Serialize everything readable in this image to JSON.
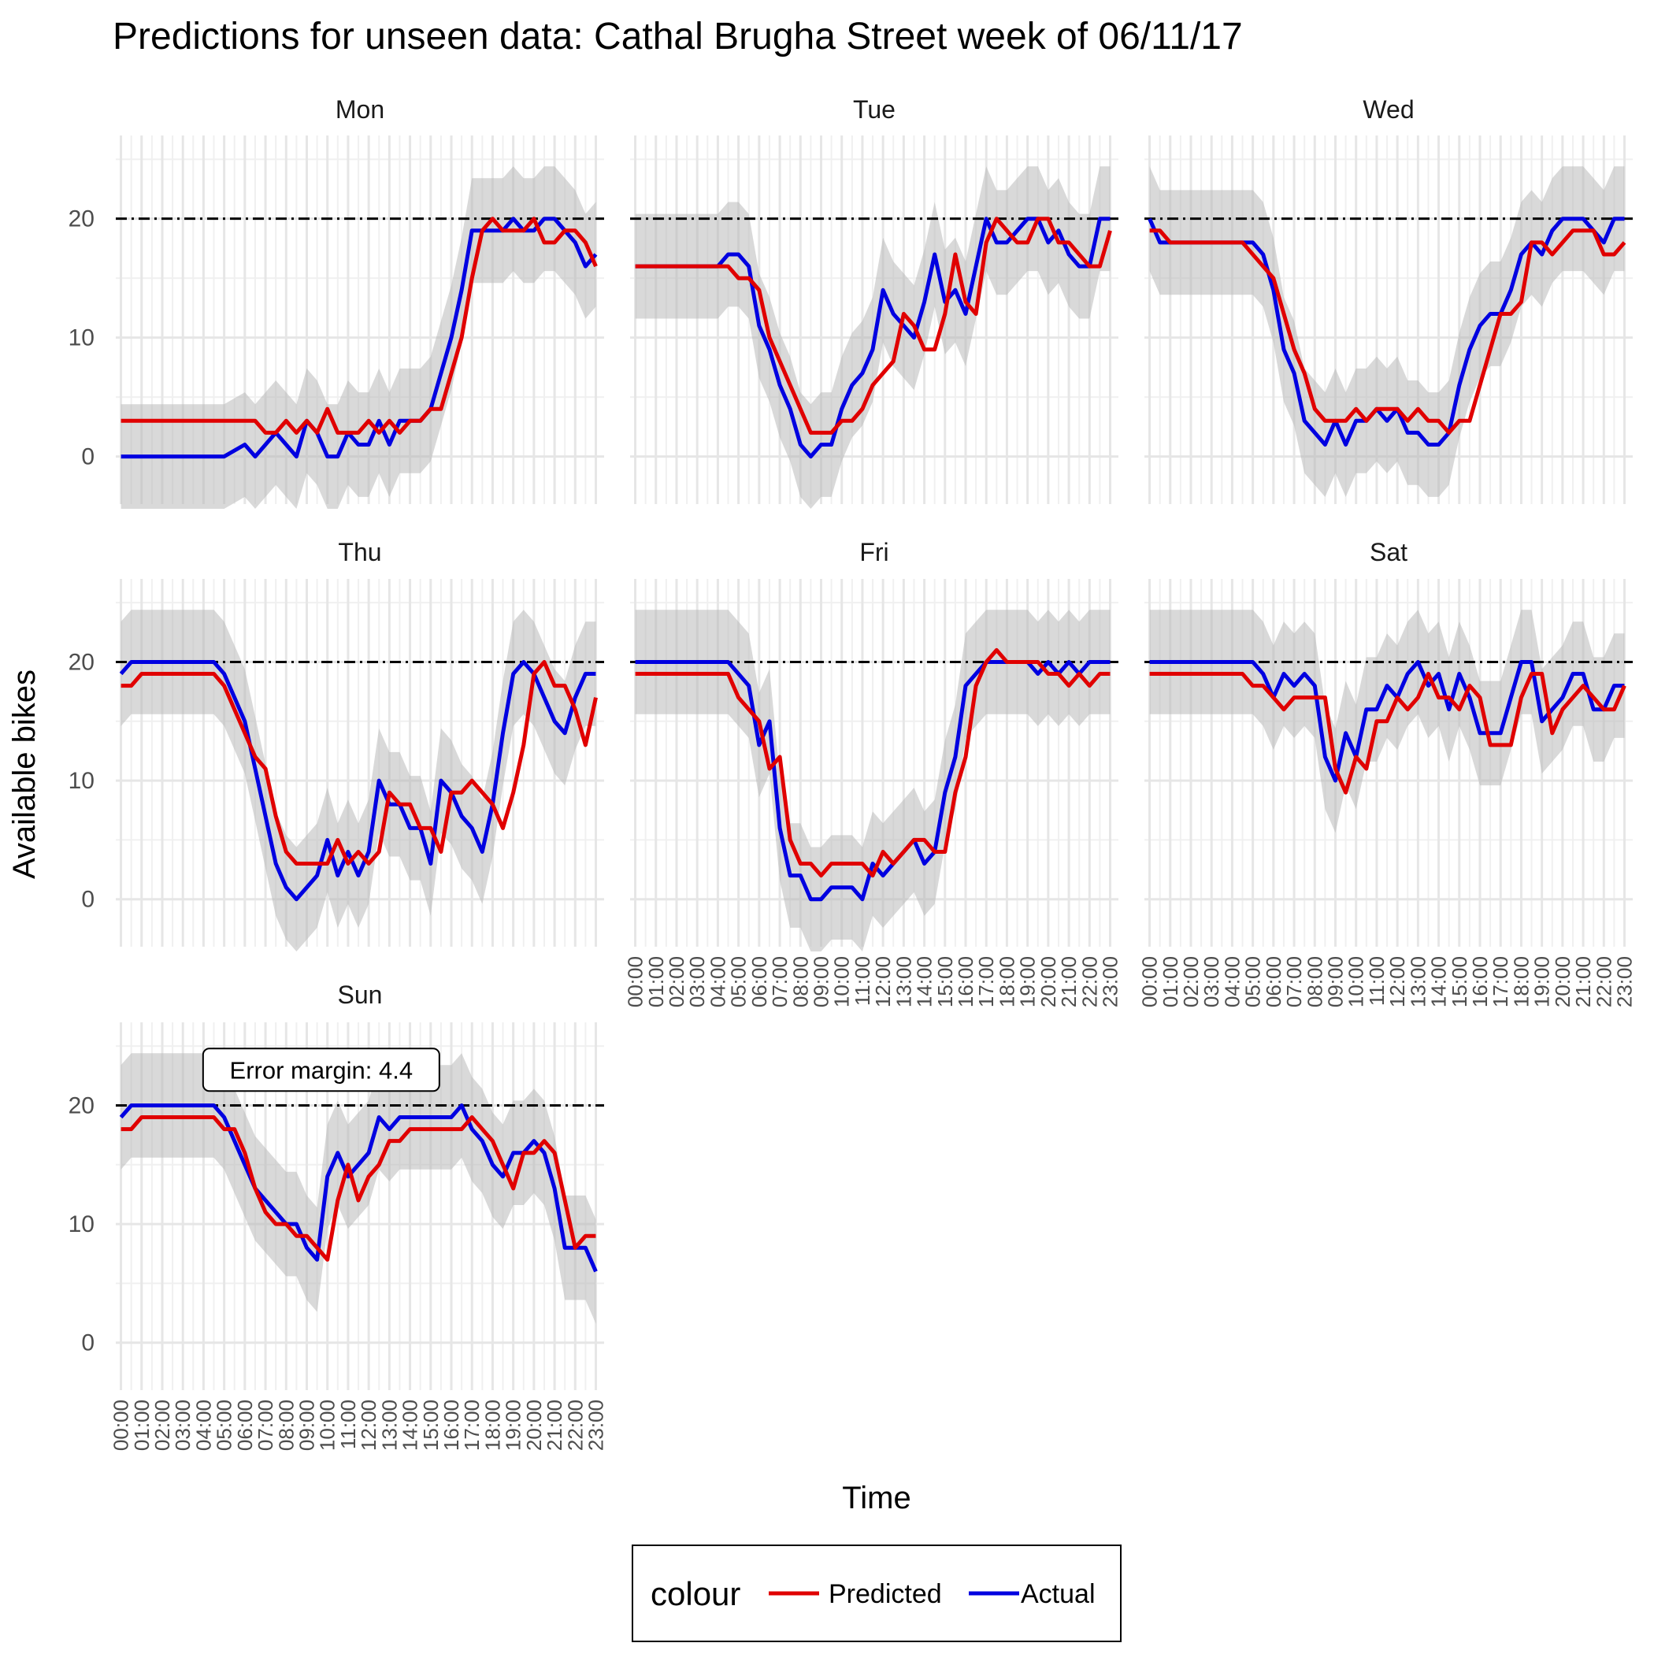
{
  "chart_data": {
    "type": "line",
    "title": "Predictions for unseen data: Cathal Brugha Street week of 06/11/17",
    "xlabel": "Time",
    "ylabel": "Available bikes",
    "ylim": [
      -4,
      27
    ],
    "yticks": [
      0,
      10,
      20
    ],
    "x_tick_labels": [
      "00:00",
      "01:00",
      "02:00",
      "03:00",
      "04:00",
      "05:00",
      "06:00",
      "07:00",
      "08:00",
      "09:00",
      "10:00",
      "11:00",
      "12:00",
      "13:00",
      "14:00",
      "15:00",
      "16:00",
      "17:00",
      "18:00",
      "19:00",
      "20:00",
      "21:00",
      "22:00",
      "23:00"
    ],
    "reference_line": 20,
    "ribbon_half_width": 4.4,
    "annotation": "Error margin: 4.4",
    "legend": {
      "title": "colour",
      "position": "bottom",
      "entries": [
        {
          "name": "Predicted",
          "color": "#e00000"
        },
        {
          "name": "Actual",
          "color": "#0000e0"
        }
      ]
    },
    "grid": true,
    "panels": [
      {
        "day": "Mon",
        "x": [
          0,
          1,
          2,
          3,
          4,
          5,
          6,
          6.5,
          7,
          7.5,
          8,
          8.5,
          9,
          9.5,
          10,
          10.5,
          11,
          11.5,
          12,
          12.5,
          13,
          13.5,
          14,
          14.5,
          15,
          15.5,
          16,
          16.5,
          17,
          17.5,
          18,
          18.5,
          19,
          19.5,
          20,
          20.5,
          21,
          21.5,
          22,
          22.5,
          23
        ],
        "predicted": [
          3,
          3,
          3,
          3,
          3,
          3,
          3,
          3,
          2,
          2,
          3,
          2,
          3,
          2,
          4,
          2,
          2,
          2,
          3,
          2,
          3,
          2,
          3,
          3,
          4,
          4,
          7,
          10,
          15,
          19,
          20,
          19,
          19,
          19,
          20,
          18,
          18,
          19,
          19,
          18,
          16
        ],
        "actual": [
          0,
          0,
          0,
          0,
          0,
          0,
          1,
          0,
          1,
          2,
          1,
          0,
          3,
          2,
          0,
          0,
          2,
          1,
          1,
          3,
          1,
          3,
          3,
          3,
          4,
          7,
          10,
          14,
          19,
          19,
          19,
          19,
          20,
          19,
          19,
          20,
          20,
          19,
          18,
          16,
          17
        ]
      },
      {
        "day": "Tue",
        "x": [
          0,
          1,
          2,
          3,
          4,
          4.5,
          5,
          5.5,
          6,
          6.5,
          7,
          7.5,
          8,
          8.5,
          9,
          9.5,
          10,
          10.5,
          11,
          11.5,
          12,
          12.5,
          13,
          13.5,
          14,
          14.5,
          15,
          15.5,
          16,
          16.5,
          17,
          17.5,
          18,
          18.5,
          19,
          19.5,
          20,
          20.5,
          21,
          21.5,
          22,
          22.5,
          23
        ],
        "predicted": [
          16,
          16,
          16,
          16,
          16,
          16,
          15,
          15,
          14,
          10,
          8,
          6,
          4,
          2,
          2,
          2,
          3,
          3,
          4,
          6,
          7,
          8,
          12,
          11,
          9,
          9,
          12,
          17,
          13,
          12,
          18,
          20,
          19,
          18,
          18,
          20,
          20,
          18,
          18,
          17,
          16,
          16,
          19
        ],
        "actual": [
          16,
          16,
          16,
          16,
          16,
          17,
          17,
          16,
          11,
          9,
          6,
          4,
          1,
          0,
          1,
          1,
          4,
          6,
          7,
          9,
          14,
          12,
          11,
          10,
          13,
          17,
          13,
          14,
          12,
          16,
          20,
          18,
          18,
          19,
          20,
          20,
          18,
          19,
          17,
          16,
          16,
          20,
          20
        ]
      },
      {
        "day": "Wed",
        "x": [
          0,
          0.5,
          1,
          2,
          3,
          4,
          4.5,
          5,
          5.5,
          6,
          6.5,
          7,
          7.5,
          8,
          8.5,
          9,
          9.5,
          10,
          10.5,
          11,
          11.5,
          12,
          12.5,
          13,
          13.5,
          14,
          14.5,
          15,
          15.5,
          16,
          16.5,
          17,
          17.5,
          18,
          18.5,
          19,
          19.5,
          20,
          20.5,
          21,
          21.5,
          22,
          22.5,
          23
        ],
        "predicted": [
          19,
          19,
          18,
          18,
          18,
          18,
          18,
          17,
          16,
          15,
          12,
          9,
          7,
          4,
          3,
          3,
          3,
          4,
          3,
          4,
          4,
          4,
          3,
          4,
          3,
          3,
          2,
          3,
          3,
          6,
          9,
          12,
          12,
          13,
          18,
          18,
          17,
          18,
          19,
          19,
          19,
          17,
          17,
          18
        ],
        "actual": [
          20,
          18,
          18,
          18,
          18,
          18,
          18,
          18,
          17,
          14,
          9,
          7,
          3,
          2,
          1,
          3,
          1,
          3,
          3,
          4,
          3,
          4,
          2,
          2,
          1,
          1,
          2,
          6,
          9,
          11,
          12,
          12,
          14,
          17,
          18,
          17,
          19,
          20,
          20,
          20,
          19,
          18,
          20,
          20
        ]
      },
      {
        "day": "Thu",
        "x": [
          0,
          0.5,
          1,
          2,
          3,
          4,
          4.5,
          5,
          5.5,
          6,
          6.5,
          7,
          7.5,
          8,
          8.5,
          9,
          9.5,
          10,
          10.5,
          11,
          11.5,
          12,
          12.5,
          13,
          13.5,
          14,
          14.5,
          15,
          15.5,
          16,
          16.5,
          17,
          17.5,
          18,
          18.5,
          19,
          19.5,
          20,
          20.5,
          21,
          21.5,
          22,
          22.5,
          23
        ],
        "predicted": [
          18,
          18,
          19,
          19,
          19,
          19,
          19,
          18,
          16,
          14,
          12,
          11,
          7,
          4,
          3,
          3,
          3,
          3,
          5,
          3,
          4,
          3,
          4,
          9,
          8,
          8,
          6,
          6,
          4,
          9,
          9,
          10,
          9,
          8,
          6,
          9,
          13,
          19,
          20,
          18,
          18,
          16,
          13,
          17
        ],
        "actual": [
          19,
          20,
          20,
          20,
          20,
          20,
          20,
          19,
          17,
          15,
          11,
          7,
          3,
          1,
          0,
          1,
          2,
          5,
          2,
          4,
          2,
          4,
          10,
          8,
          8,
          6,
          6,
          3,
          10,
          9,
          7,
          6,
          4,
          8,
          14,
          19,
          20,
          19,
          17,
          15,
          14,
          17,
          19,
          19
        ]
      },
      {
        "day": "Fri",
        "x": [
          0,
          1,
          2,
          3,
          4,
          4.5,
          5,
          5.5,
          6,
          6.5,
          7,
          7.5,
          8,
          8.5,
          9,
          9.5,
          10,
          10.5,
          11,
          11.5,
          12,
          12.5,
          13,
          13.5,
          14,
          14.5,
          15,
          15.5,
          16,
          16.5,
          17,
          17.5,
          18,
          18.5,
          19,
          19.5,
          20,
          20.5,
          21,
          21.5,
          22,
          22.5,
          23
        ],
        "predicted": [
          19,
          19,
          19,
          19,
          19,
          19,
          17,
          16,
          15,
          11,
          12,
          5,
          3,
          3,
          2,
          3,
          3,
          3,
          3,
          2,
          4,
          3,
          4,
          5,
          5,
          4,
          4,
          9,
          12,
          18,
          20,
          21,
          20,
          20,
          20,
          20,
          19,
          19,
          18,
          19,
          18,
          19,
          19
        ],
        "actual": [
          20,
          20,
          20,
          20,
          20,
          20,
          19,
          18,
          13,
          15,
          6,
          2,
          2,
          0,
          0,
          1,
          1,
          1,
          0,
          3,
          2,
          3,
          4,
          5,
          3,
          4,
          9,
          12,
          18,
          19,
          20,
          20,
          20,
          20,
          20,
          19,
          20,
          19,
          20,
          19,
          20,
          20,
          20
        ]
      },
      {
        "day": "Sat",
        "x": [
          0,
          1,
          2,
          3,
          4,
          4.5,
          5,
          5.5,
          6,
          6.5,
          7,
          7.5,
          8,
          8.5,
          9,
          9.5,
          10,
          10.5,
          11,
          11.5,
          12,
          12.5,
          13,
          13.5,
          14,
          14.5,
          15,
          15.5,
          16,
          16.5,
          17,
          17.5,
          18,
          18.5,
          19,
          19.5,
          20,
          20.5,
          21,
          21.5,
          22,
          22.5,
          23
        ],
        "predicted": [
          19,
          19,
          19,
          19,
          19,
          19,
          18,
          18,
          17,
          16,
          17,
          17,
          17,
          17,
          11,
          9,
          12,
          11,
          15,
          15,
          17,
          16,
          17,
          19,
          17,
          17,
          16,
          18,
          17,
          13,
          13,
          13,
          17,
          19,
          19,
          14,
          16,
          17,
          18,
          17,
          16,
          16,
          18
        ],
        "actual": [
          20,
          20,
          20,
          20,
          20,
          20,
          20,
          19,
          17,
          19,
          18,
          19,
          18,
          12,
          10,
          14,
          12,
          16,
          16,
          18,
          17,
          19,
          20,
          18,
          19,
          16,
          19,
          17,
          14,
          14,
          14,
          17,
          20,
          20,
          15,
          16,
          17,
          19,
          19,
          16,
          16,
          18,
          18
        ]
      },
      {
        "day": "Sun",
        "x": [
          0,
          0.5,
          1,
          2,
          3,
          4,
          4.5,
          5,
          5.5,
          6,
          6.5,
          7,
          7.5,
          8,
          8.5,
          9,
          9.5,
          10,
          10.5,
          11,
          11.5,
          12,
          12.5,
          13,
          13.5,
          14,
          14.5,
          15,
          15.5,
          16,
          16.5,
          17,
          17.5,
          18,
          18.5,
          19,
          19.5,
          20,
          20.5,
          21,
          21.5,
          22,
          22.5,
          23
        ],
        "predicted": [
          18,
          18,
          19,
          19,
          19,
          19,
          19,
          18,
          18,
          16,
          13,
          11,
          10,
          10,
          9,
          9,
          8,
          7,
          12,
          15,
          12,
          14,
          15,
          17,
          17,
          18,
          18,
          18,
          18,
          18,
          18,
          19,
          18,
          17,
          15,
          13,
          16,
          16,
          17,
          16,
          12,
          8,
          9,
          9
        ],
        "actual": [
          19,
          20,
          20,
          20,
          20,
          20,
          20,
          19,
          17,
          15,
          13,
          12,
          11,
          10,
          10,
          8,
          7,
          14,
          16,
          14,
          15,
          16,
          19,
          18,
          19,
          19,
          19,
          19,
          19,
          19,
          20,
          18,
          17,
          15,
          14,
          16,
          16,
          17,
          16,
          13,
          8,
          8,
          8,
          6
        ]
      }
    ]
  }
}
